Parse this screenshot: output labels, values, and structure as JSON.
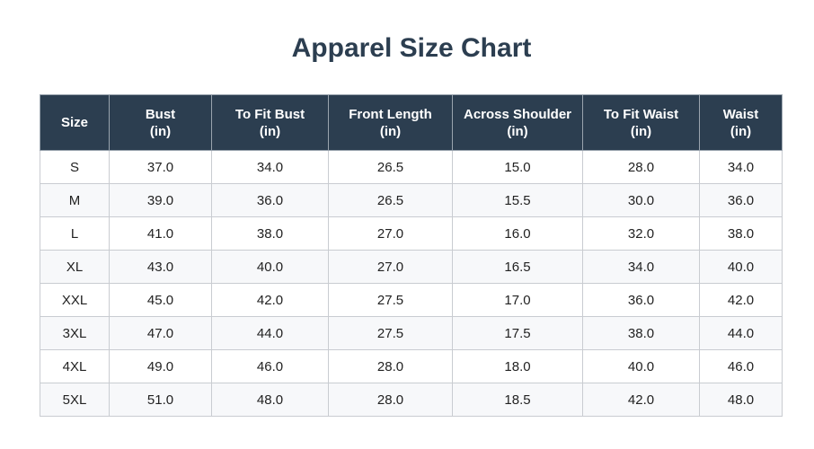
{
  "title": "Apparel Size Chart",
  "columns": [
    {
      "line1": "Size",
      "line2": ""
    },
    {
      "line1": "Bust",
      "line2": "(in)"
    },
    {
      "line1": "To Fit Bust",
      "line2": "(in)"
    },
    {
      "line1": "Front Length",
      "line2": "(in)"
    },
    {
      "line1": "Across Shoulder",
      "line2": "(in)"
    },
    {
      "line1": "To Fit Waist",
      "line2": "(in)"
    },
    {
      "line1": "Waist",
      "line2": "(in)"
    }
  ],
  "rows": [
    [
      "S",
      "37.0",
      "34.0",
      "26.5",
      "15.0",
      "28.0",
      "34.0"
    ],
    [
      "M",
      "39.0",
      "36.0",
      "26.5",
      "15.5",
      "30.0",
      "36.0"
    ],
    [
      "L",
      "41.0",
      "38.0",
      "27.0",
      "16.0",
      "32.0",
      "38.0"
    ],
    [
      "XL",
      "43.0",
      "40.0",
      "27.0",
      "16.5",
      "34.0",
      "40.0"
    ],
    [
      "XXL",
      "45.0",
      "42.0",
      "27.5",
      "17.0",
      "36.0",
      "42.0"
    ],
    [
      "3XL",
      "47.0",
      "44.0",
      "27.5",
      "17.5",
      "38.0",
      "44.0"
    ],
    [
      "4XL",
      "49.0",
      "46.0",
      "28.0",
      "18.0",
      "40.0",
      "46.0"
    ],
    [
      "5XL",
      "51.0",
      "48.0",
      "28.0",
      "18.5",
      "42.0",
      "48.0"
    ]
  ],
  "colors": {
    "header_bg": "#2c3e50",
    "header_text": "#ffffff",
    "title_text": "#2c3e50",
    "stripe_bg": "#f7f8fa"
  }
}
